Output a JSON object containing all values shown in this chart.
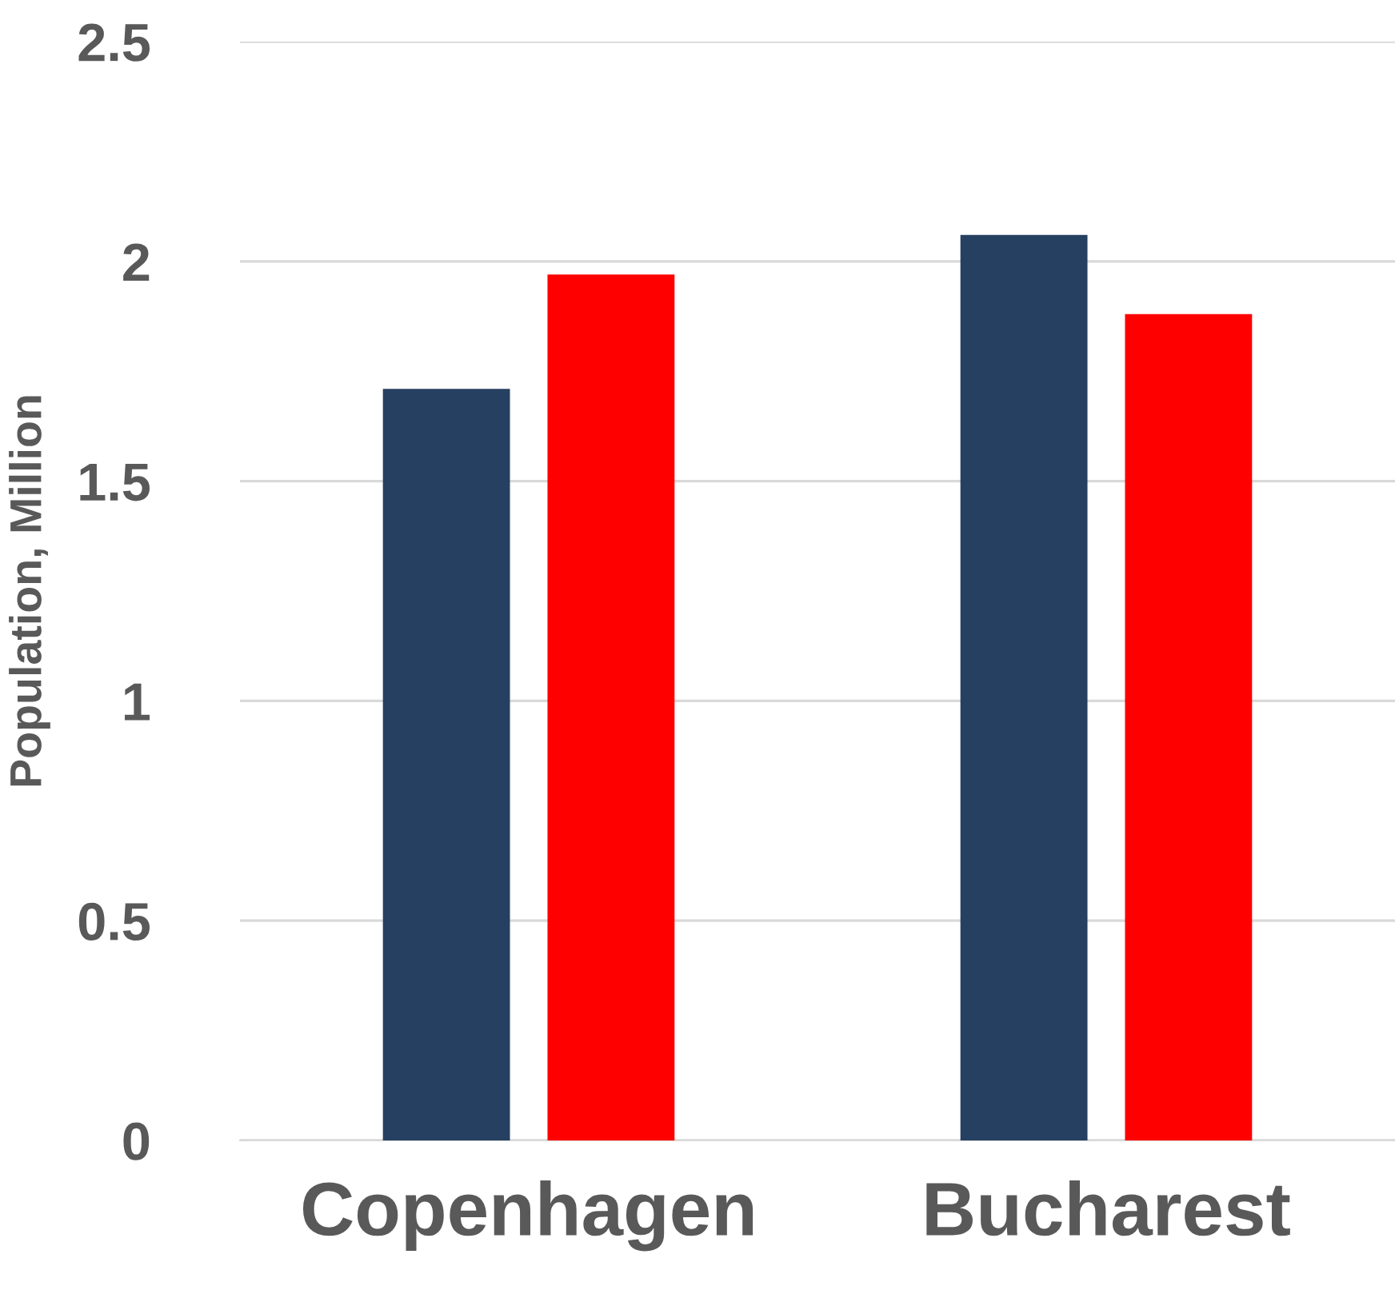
{
  "chart_data": {
    "type": "bar",
    "ylabel": "Population, Million",
    "categories": [
      "Copenhagen",
      "Bucharest"
    ],
    "series": [
      {
        "color": "#264061",
        "values": [
          1.71,
          2.06
        ]
      },
      {
        "color": "#ff0000",
        "values": [
          1.97,
          1.88
        ]
      }
    ],
    "ylim": [
      0,
      2.5
    ],
    "yticks": [
      0,
      0.5,
      1,
      1.5,
      2,
      2.5
    ],
    "grid": "y",
    "legend": false
  }
}
